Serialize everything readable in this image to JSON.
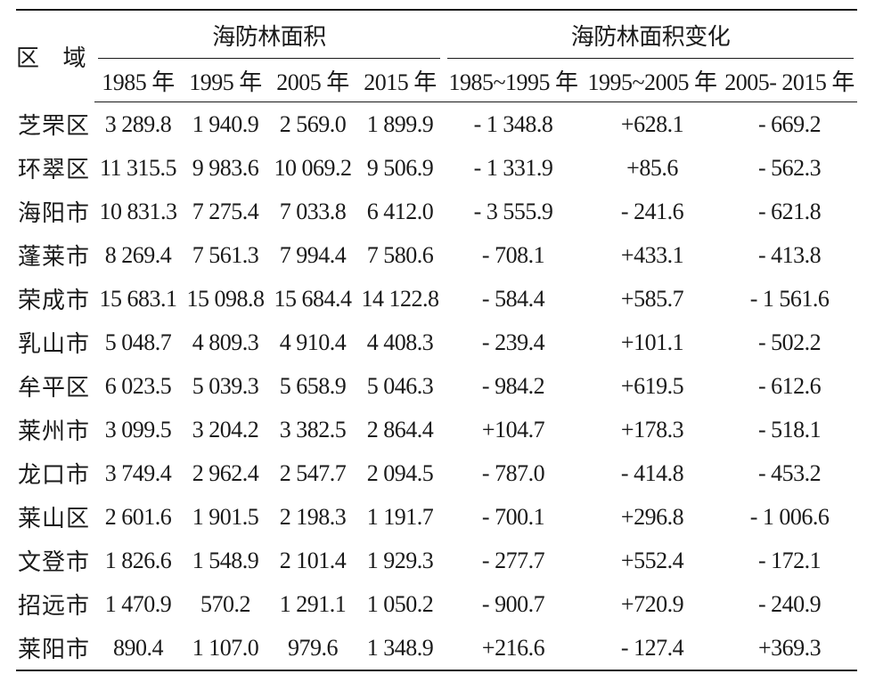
{
  "table": {
    "region_header": "区 域",
    "group_area": "海防林面积",
    "group_change": "海防林面积变化",
    "sub_headers": [
      "1985 年",
      "1995 年",
      "2005 年",
      "2015 年",
      "1985~1995 年",
      "1995~2005 年",
      "2005- 2015 年"
    ],
    "rows": [
      {
        "region": "芝罘区",
        "a1985": "3 289.8",
        "a1995": "1 940.9",
        "a2005": "2 569.0",
        "a2015": "1 899.9",
        "c1": "- 1 348.8",
        "c2": "+628.1",
        "c3": "- 669.2"
      },
      {
        "region": "环翠区",
        "a1985": "11 315.5",
        "a1995": "9 983.6",
        "a2005": "10 069.2",
        "a2015": "9 506.9",
        "c1": "- 1 331.9",
        "c2": "+85.6",
        "c3": "- 562.3"
      },
      {
        "region": "海阳市",
        "a1985": "10 831.3",
        "a1995": "7 275.4",
        "a2005": "7 033.8",
        "a2015": "6 412.0",
        "c1": "- 3 555.9",
        "c2": "- 241.6",
        "c3": "- 621.8"
      },
      {
        "region": "蓬莱市",
        "a1985": "8 269.4",
        "a1995": "7 561.3",
        "a2005": "7 994.4",
        "a2015": "7 580.6",
        "c1": "- 708.1",
        "c2": "+433.1",
        "c3": "- 413.8"
      },
      {
        "region": "荣成市",
        "a1985": "15 683.1",
        "a1995": "15 098.8",
        "a2005": "15 684.4",
        "a2015": "14 122.8",
        "c1": "- 584.4",
        "c2": "+585.7",
        "c3": "- 1 561.6"
      },
      {
        "region": "乳山市",
        "a1985": "5 048.7",
        "a1995": "4 809.3",
        "a2005": "4 910.4",
        "a2015": "4 408.3",
        "c1": "- 239.4",
        "c2": "+101.1",
        "c3": "- 502.2"
      },
      {
        "region": "牟平区",
        "a1985": "6 023.5",
        "a1995": "5 039.3",
        "a2005": "5 658.9",
        "a2015": "5 046.3",
        "c1": "- 984.2",
        "c2": "+619.5",
        "c3": "- 612.6"
      },
      {
        "region": "莱州市",
        "a1985": "3 099.5",
        "a1995": "3 204.2",
        "a2005": "3 382.5",
        "a2015": "2 864.4",
        "c1": "+104.7",
        "c2": "+178.3",
        "c3": "- 518.1"
      },
      {
        "region": "龙口市",
        "a1985": "3 749.4",
        "a1995": "2 962.4",
        "a2005": "2 547.7",
        "a2015": "2 094.5",
        "c1": "- 787.0",
        "c2": "- 414.8",
        "c3": "- 453.2"
      },
      {
        "region": "莱山区",
        "a1985": "2 601.6",
        "a1995": "1 901.5",
        "a2005": "2 198.3",
        "a2015": "1 191.7",
        "c1": "- 700.1",
        "c2": "+296.8",
        "c3": "- 1 006.6"
      },
      {
        "region": "文登市",
        "a1985": "1 826.6",
        "a1995": "1 548.9",
        "a2005": "2 101.4",
        "a2015": "1 929.3",
        "c1": "- 277.7",
        "c2": "+552.4",
        "c3": "- 172.1"
      },
      {
        "region": "招远市",
        "a1985": "1 470.9",
        "a1995": "570.2",
        "a2005": "1 291.1",
        "a2015": "1 050.2",
        "c1": "- 900.7",
        "c2": "+720.9",
        "c3": "- 240.9"
      },
      {
        "region": "莱阳市",
        "a1985": "890.4",
        "a1995": "1 107.0",
        "a2005": "979.6",
        "a2015": "1 348.9",
        "c1": "+216.6",
        "c2": "- 127.4",
        "c3": "+369.3"
      }
    ]
  }
}
